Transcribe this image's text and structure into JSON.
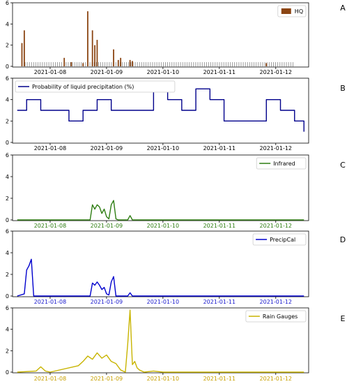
{
  "x_ticks": [
    "2021-01-08",
    "2021-01-09",
    "2021-01-10",
    "2021-01-11",
    "2021-01-12"
  ],
  "chart_data": [
    {
      "panel": "A",
      "type": "bar",
      "legend": {
        "label": "HQ",
        "placement": "top-right"
      },
      "color": "#8b4513",
      "ylim": [
        0,
        6
      ],
      "yticks": [
        "0",
        "2",
        "4",
        "6"
      ],
      "series": [
        {
          "name": "HQ",
          "x": [
            "2021-01-07T12:00",
            "2021-01-07T13:00",
            "2021-01-08T06:00",
            "2021-01-08T09:00",
            "2021-01-08T14:00",
            "2021-01-08T16:00",
            "2021-01-08T18:00",
            "2021-01-08T19:00",
            "2021-01-08T20:00",
            "2021-01-09T03:00",
            "2021-01-09T05:00",
            "2021-01-09T06:00",
            "2021-01-09T10:00",
            "2021-01-09T11:00",
            "2021-01-11T20:00"
          ],
          "values": [
            2.2,
            3.4,
            0.8,
            0.4,
            0.3,
            5.2,
            3.4,
            2.0,
            2.5,
            1.6,
            0.6,
            0.8,
            0.6,
            0.5,
            0.3
          ]
        }
      ],
      "missing_marks": "gray tick marks across period near zero",
      "grid": false
    },
    {
      "panel": "B",
      "type": "line",
      "legend": {
        "label": "Probability of liquid precipitation (%)",
        "placement": "top-left"
      },
      "color": "#00008b",
      "ylim": [
        0,
        6
      ],
      "yticks": [
        "0",
        "2",
        "4",
        "6"
      ],
      "x": [
        "2021-01-07T10:00",
        "2021-01-07T14:00",
        "2021-01-07T20:00",
        "2021-01-08T02:00",
        "2021-01-08T08:00",
        "2021-01-08T14:00",
        "2021-01-08T20:00",
        "2021-01-09T02:00",
        "2021-01-09T08:00",
        "2021-01-09T14:00",
        "2021-01-09T20:00",
        "2021-01-10T02:00",
        "2021-01-10T08:00",
        "2021-01-10T14:00",
        "2021-01-10T20:00",
        "2021-01-11T02:00",
        "2021-01-11T08:00",
        "2021-01-11T14:00",
        "2021-01-11T20:00",
        "2021-01-12T02:00",
        "2021-01-12T08:00",
        "2021-01-12T12:00"
      ],
      "values": [
        3,
        4,
        3,
        3,
        2,
        3,
        4,
        3,
        3,
        3,
        5,
        4,
        3,
        5,
        4,
        2,
        2,
        2,
        4,
        3,
        2,
        1
      ],
      "grid": false
    },
    {
      "panel": "C",
      "type": "line",
      "legend": {
        "label": "Infrared",
        "placement": "top-right"
      },
      "color": "#2e7d12",
      "ylim": [
        0,
        6
      ],
      "yticks": [
        "0",
        "2",
        "4",
        "6"
      ],
      "x": [
        "2021-01-07T10:00",
        "2021-01-08T17:00",
        "2021-01-08T18:00",
        "2021-01-08T19:00",
        "2021-01-08T20:00",
        "2021-01-08T21:00",
        "2021-01-08T22:00",
        "2021-01-08T23:00",
        "2021-01-09T00:00",
        "2021-01-09T01:00",
        "2021-01-09T02:00",
        "2021-01-09T03:00",
        "2021-01-09T04:00",
        "2021-01-09T05:00",
        "2021-01-09T09:00",
        "2021-01-09T10:00",
        "2021-01-09T11:00",
        "2021-01-12T12:00"
      ],
      "values": [
        0,
        0,
        1.4,
        1.0,
        1.4,
        1.2,
        0.6,
        1.0,
        0.3,
        0.1,
        1.4,
        1.8,
        0.1,
        0,
        0,
        0.4,
        0,
        0
      ],
      "tick_label_color": "#2e7d12",
      "grid": false
    },
    {
      "panel": "D",
      "type": "line",
      "legend": {
        "label": "PrecipCal",
        "placement": "top-right"
      },
      "color": "#0000cd",
      "ylim": [
        0,
        6
      ],
      "yticks": [
        "0",
        "2",
        "4",
        "6"
      ],
      "x": [
        "2021-01-07T10:00",
        "2021-01-07T13:00",
        "2021-01-07T14:00",
        "2021-01-07T15:00",
        "2021-01-07T16:00",
        "2021-01-07T17:00",
        "2021-01-08T17:00",
        "2021-01-08T18:00",
        "2021-01-08T19:00",
        "2021-01-08T20:00",
        "2021-01-08T21:00",
        "2021-01-08T22:00",
        "2021-01-08T23:00",
        "2021-01-09T00:00",
        "2021-01-09T01:00",
        "2021-01-09T02:00",
        "2021-01-09T03:00",
        "2021-01-09T04:00",
        "2021-01-09T09:00",
        "2021-01-09T10:00",
        "2021-01-09T11:00",
        "2021-01-12T12:00"
      ],
      "values": [
        0,
        0.2,
        2.4,
        2.8,
        3.4,
        0,
        0,
        1.2,
        1.0,
        1.3,
        1.0,
        0.6,
        0.8,
        0.2,
        0.1,
        1.3,
        1.8,
        0,
        0,
        0.3,
        0,
        0
      ],
      "tick_label_color": "#1a1acd",
      "grid": false
    },
    {
      "panel": "E",
      "type": "line",
      "legend": {
        "label": "Rain Gauges",
        "placement": "top-right"
      },
      "color": "#c8b400",
      "ylim": [
        0,
        6
      ],
      "yticks": [
        "0",
        "2",
        "4",
        "6"
      ],
      "x": [
        "2021-01-07T10:00",
        "2021-01-07T18:00",
        "2021-01-07T20:00",
        "2021-01-07T22:00",
        "2021-01-08T00:00",
        "2021-01-08T12:00",
        "2021-01-08T14:00",
        "2021-01-08T16:00",
        "2021-01-08T18:00",
        "2021-01-08T20:00",
        "2021-01-08T22:00",
        "2021-01-09T00:00",
        "2021-01-09T02:00",
        "2021-01-09T04:00",
        "2021-01-09T06:00",
        "2021-01-09T08:00",
        "2021-01-09T09:00",
        "2021-01-09T10:00",
        "2021-01-09T11:00",
        "2021-01-09T12:00",
        "2021-01-09T13:00",
        "2021-01-09T14:00",
        "2021-01-09T16:00",
        "2021-01-09T20:00",
        "2021-01-10T00:00",
        "2021-01-12T12:00"
      ],
      "values": [
        0,
        0.1,
        0.5,
        0.1,
        0,
        0.6,
        1.0,
        1.5,
        1.2,
        1.8,
        1.3,
        1.6,
        1.0,
        0.8,
        0.2,
        0,
        2.6,
        5.8,
        0.7,
        1.0,
        0.4,
        0.2,
        0,
        0.1,
        0,
        0
      ],
      "tick_label_color": "#c8a000",
      "grid": false
    }
  ]
}
